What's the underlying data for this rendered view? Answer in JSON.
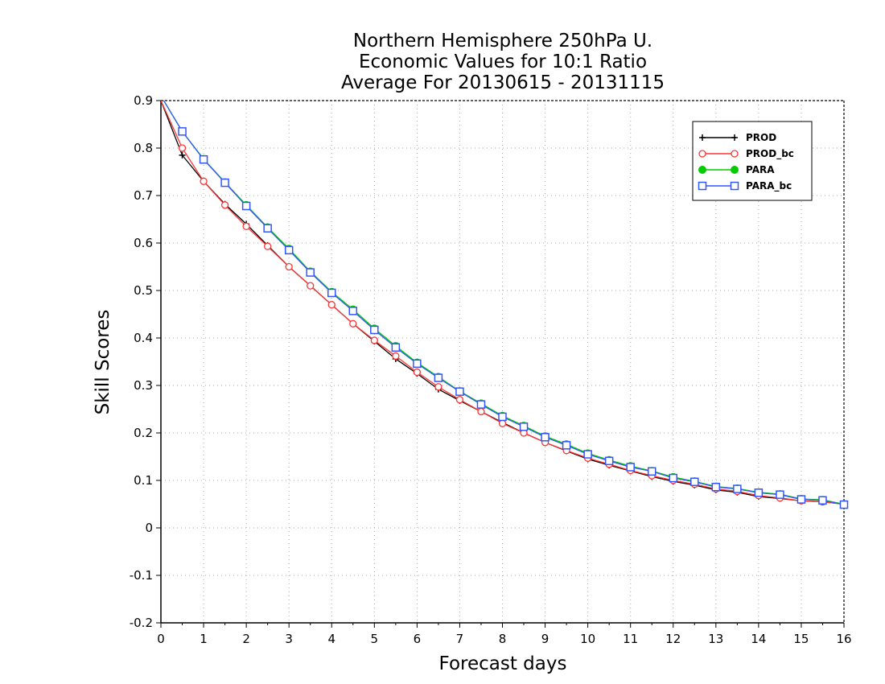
{
  "chart_data": {
    "type": "line",
    "title_lines": [
      "Northern Hemisphere 250hPa U.",
      "Economic Values for 10:1 Ratio",
      "Average For 20130615 - 20131115"
    ],
    "xlabel": "Forecast days",
    "ylabel": "Skill Scores",
    "xlim": [
      0,
      16
    ],
    "ylim": [
      -0.2,
      0.9
    ],
    "xticks": [
      "0",
      "1",
      "2",
      "3",
      "4",
      "5",
      "6",
      "7",
      "8",
      "9",
      "10",
      "11",
      "12",
      "13",
      "14",
      "15",
      "16"
    ],
    "yticks": [
      "0.9",
      "0.8",
      "0.7",
      "0.6",
      "0.5",
      "0.4",
      "0.3",
      "0.2",
      "0.1",
      "0",
      "-0.1",
      "-0.2"
    ],
    "grid": true,
    "legend_position": "top-right",
    "x": [
      0,
      0.5,
      1,
      1.5,
      2,
      2.5,
      3,
      3.5,
      4,
      4.5,
      5,
      5.5,
      6,
      6.5,
      7,
      7.5,
      8,
      8.5,
      9,
      9.5,
      10,
      10.5,
      11,
      11.5,
      12,
      12.5,
      13,
      13.5,
      14,
      14.5,
      15,
      15.5,
      16
    ],
    "series": [
      {
        "name": "PROD",
        "color": "#000000",
        "marker": "plus",
        "values": [
          0.9,
          0.785,
          0.73,
          0.682,
          0.64,
          0.595,
          0.55,
          0.51,
          0.47,
          0.43,
          0.393,
          0.356,
          0.325,
          0.292,
          0.268,
          0.245,
          0.222,
          0.2,
          0.18,
          0.162,
          0.145,
          0.132,
          0.12,
          0.108,
          0.098,
          0.09,
          0.08,
          0.075,
          0.066,
          0.062,
          0.057,
          0.055,
          0.05
        ]
      },
      {
        "name": "PROD_bc",
        "color": "#ff3333",
        "marker": "circle",
        "values": [
          0.9,
          0.8,
          0.73,
          0.68,
          0.635,
          0.593,
          0.55,
          0.51,
          0.47,
          0.43,
          0.395,
          0.362,
          0.328,
          0.297,
          0.27,
          0.245,
          0.22,
          0.2,
          0.18,
          0.163,
          0.147,
          0.134,
          0.121,
          0.11,
          0.1,
          0.092,
          0.082,
          0.077,
          0.068,
          0.063,
          0.057,
          0.055,
          0.05
        ]
      },
      {
        "name": "PARA",
        "color": "#00cc00",
        "marker": "filled-circle",
        "values": [
          0.91,
          0.835,
          0.777,
          0.728,
          0.68,
          0.633,
          0.588,
          0.54,
          0.497,
          0.46,
          0.42,
          0.383,
          0.348,
          0.318,
          0.288,
          0.262,
          0.236,
          0.215,
          0.193,
          0.176,
          0.157,
          0.143,
          0.13,
          0.12,
          0.107,
          0.098,
          0.087,
          0.083,
          0.075,
          0.071,
          0.061,
          0.059,
          0.05
        ]
      },
      {
        "name": "PARA_bc",
        "color": "#3355ff",
        "marker": "square",
        "values": [
          0.91,
          0.835,
          0.776,
          0.727,
          0.678,
          0.631,
          0.585,
          0.538,
          0.495,
          0.457,
          0.417,
          0.38,
          0.346,
          0.316,
          0.287,
          0.26,
          0.234,
          0.213,
          0.191,
          0.174,
          0.155,
          0.141,
          0.128,
          0.119,
          0.105,
          0.097,
          0.086,
          0.082,
          0.074,
          0.07,
          0.06,
          0.058,
          0.049
        ]
      }
    ]
  }
}
